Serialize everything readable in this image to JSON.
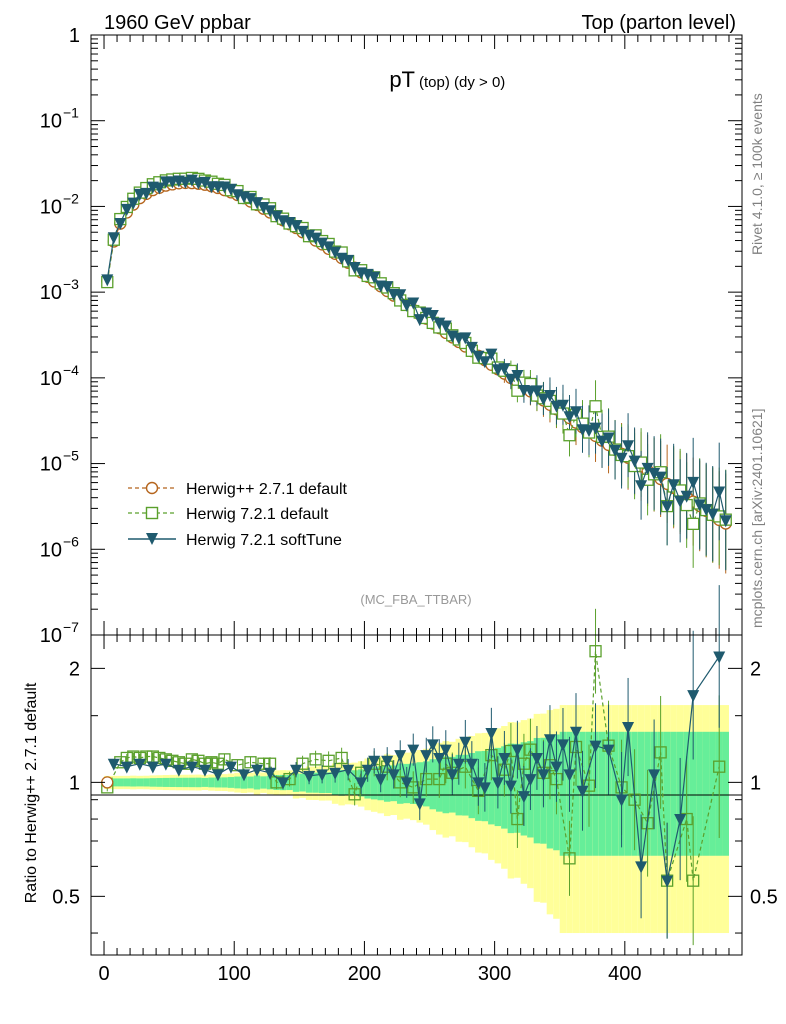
{
  "header": {
    "left": "1960 GeV ppbar",
    "right": "Top (parton level)"
  },
  "side_labels": {
    "rivet": "Rivet 4.1.0, ≥ 100k events",
    "mcplots": "mcplots.cern.ch [arXiv:2401.10621]"
  },
  "colors": {
    "herwigpp": "#b5651d",
    "herwig721": "#5aa02c",
    "softtune": "#1f5a6e",
    "band_yellow": "#ffff99",
    "band_green": "#66ee99"
  },
  "chart_data": [
    {
      "type": "line",
      "title_main": "pT",
      "title_sub": "(top) (dy > 0)",
      "watermark": "(MC_FBA_TTBAR)",
      "yscale": "log",
      "ylim": [
        1e-07,
        1
      ],
      "xlim": [
        -10,
        490
      ],
      "y_ticks": [
        {
          "v": 1,
          "base": "1",
          "exp": ""
        },
        {
          "v": 0.1,
          "base": "10",
          "exp": "−1"
        },
        {
          "v": 0.01,
          "base": "10",
          "exp": "−2"
        },
        {
          "v": 0.001,
          "base": "10",
          "exp": "−3"
        },
        {
          "v": 0.0001,
          "base": "10",
          "exp": "−4"
        },
        {
          "v": 1e-05,
          "base": "10",
          "exp": "−5"
        },
        {
          "v": 1e-06,
          "base": "10",
          "exp": "−6"
        },
        {
          "v": 1e-07,
          "base": "10",
          "exp": "−7"
        }
      ],
      "legend_position": "bottom-left",
      "series": [
        {
          "name": "Herwig++ 2.7.1 default",
          "marker": "circle-open",
          "x": [
            2.5,
            7.5,
            12.5,
            17.5,
            22.5,
            27.5,
            32.5,
            37.5,
            42.5,
            47.5,
            52.5,
            57.5,
            62.5,
            67.5,
            72.5,
            77.5,
            82.5,
            87.5,
            92.5,
            97.5,
            102.5,
            107.5,
            112.5,
            117.5,
            122.5,
            127.5,
            132.5,
            137.5,
            142.5,
            147.5,
            152.5,
            157.5,
            162.5,
            167.5,
            172.5,
            177.5,
            182.5,
            187.5,
            192.5,
            197.5,
            202.5,
            207.5,
            212.5,
            217.5,
            222.5,
            227.5,
            232.5,
            237.5,
            242.5,
            247.5,
            252.5,
            257.5,
            262.5,
            267.5,
            272.5,
            277.5,
            282.5,
            287.5,
            292.5,
            297.5,
            302.5,
            307.5,
            312.5,
            317.5,
            322.5,
            327.5,
            332.5,
            337.5,
            342.5,
            347.5,
            352.5,
            357.5,
            362.5,
            367.5,
            372.5,
            377.5,
            382.5,
            387.5,
            392.5,
            397.5,
            402.5,
            407.5,
            412.5,
            417.5,
            422.5,
            427.5,
            432.5,
            437.5,
            442.5,
            447.5,
            452.5,
            457.5,
            462.5,
            467.5,
            472.5,
            477.5
          ],
          "y": [
            0.00135,
            0.0039,
            0.0063,
            0.0085,
            0.0105,
            0.0125,
            0.014,
            0.0155,
            0.0165,
            0.0175,
            0.0181,
            0.0186,
            0.0188,
            0.0187,
            0.0184,
            0.0179,
            0.0172,
            0.0164,
            0.0155,
            0.0146,
            0.0136,
            0.0125,
            0.0114,
            0.0104,
            0.0094,
            0.0085,
            0.0077,
            0.0069,
            0.0062,
            0.0056,
            0.005,
            0.0045,
            0.004,
            0.0036,
            0.0032,
            0.0028,
            0.0025,
            0.0022,
            0.00193,
            0.0017,
            0.00151,
            0.00133,
            0.00117,
            0.00103,
            0.00091,
            0.0008,
            0.00071,
            0.00062,
            0.00055,
            0.00049,
            0.00043,
            0.00038,
            0.000335,
            0.000296,
            0.000262,
            0.000232,
            0.000205,
            0.000181,
            0.000161,
            0.000142,
            0.000126,
            0.000112,
            9.95e-05,
            8.85e-05,
            7.85e-05,
            6.95e-05,
            6.15e-05,
            5.45e-05,
            4.85e-05,
            4.3e-05,
            3.85e-05,
            3.4e-05,
            3e-05,
            2.65e-05,
            2.35e-05,
            2.1e-05,
            1.85e-05,
            1.65e-05,
            1.45e-05,
            1.3e-05,
            1.17e-05,
            1.04e-05,
            9.3e-06,
            8.3e-06,
            7.4e-06,
            6.6e-06,
            5.8e-06,
            5.2e-06,
            4.6e-06,
            4.1e-06,
            3.6e-06,
            3.2e-06,
            2.8e-06,
            2.5e-06,
            2.2e-06,
            2e-06
          ]
        },
        {
          "name": "Herwig 7.2.1 default",
          "marker": "square-open"
        },
        {
          "name": "Herwig 7.2.1 softTune",
          "marker": "triangle-down-filled"
        }
      ]
    },
    {
      "type": "line",
      "ylabel": "Ratio to Herwig++ 2.7.1 default",
      "ylim": [
        0.35,
        2.45
      ],
      "y_ticks": [
        0.5,
        1,
        2
      ],
      "x_ticks": [
        0,
        100,
        200,
        300,
        400
      ],
      "reference": 1,
      "series_ratio": [
        {
          "name": "Herwig 7.2.1 default",
          "x": [
            2.5,
            12.5,
            17.5,
            22.5,
            27.5,
            32.5,
            37.5,
            42.5,
            47.5,
            52.5,
            57.5,
            62.5,
            67.5,
            72.5,
            77.5,
            82.5,
            87.5,
            92.5,
            102.5,
            112.5,
            122.5,
            127.5,
            132.5,
            142.5,
            152.5,
            162.5,
            172.5,
            182.5,
            192.5,
            197.5,
            207.5,
            217.5,
            227.5,
            237.5,
            247.5,
            257.5,
            262.5,
            267.5,
            277.5,
            287.5,
            297.5,
            307.5,
            312.5,
            317.5,
            322.5,
            327.5,
            337.5,
            342.5,
            347.5,
            357.5,
            362.5,
            372.5,
            377.5,
            387.5,
            397.5,
            407.5,
            417.5,
            427.5,
            432.5,
            447.5,
            452.5,
            472.5
          ],
          "y": [
            0.97,
            1.13,
            1.16,
            1.17,
            1.16,
            1.17,
            1.17,
            1.16,
            1.15,
            1.14,
            1.13,
            1.12,
            1.15,
            1.14,
            1.12,
            1.13,
            1.12,
            1.15,
            1.11,
            1.13,
            1.12,
            1.12,
            1.0,
            1.02,
            1.12,
            1.15,
            1.14,
            1.16,
            0.93,
            1.06,
            1.12,
            1.1,
            1.0,
            0.97,
            1.02,
            1.02,
            1.12,
            1.06,
            1.1,
            0.95,
            1.18,
            1.08,
            1.21,
            0.8,
            1.12,
            1.22,
            1.06,
            1.11,
            1.02,
            0.63,
            1.24,
            0.98,
            2.22,
            1.25,
            0.97,
            0.9,
            0.78,
            1.2,
            0.55,
            0.8,
            0.55,
            1.1
          ]
        },
        {
          "name": "Herwig 7.2.1 softTune",
          "x": [
            7.5,
            17.5,
            27.5,
            37.5,
            47.5,
            57.5,
            67.5,
            77.5,
            87.5,
            97.5,
            107.5,
            117.5,
            127.5,
            137.5,
            147.5,
            157.5,
            167.5,
            177.5,
            187.5,
            197.5,
            202.5,
            207.5,
            212.5,
            217.5,
            222.5,
            227.5,
            232.5,
            237.5,
            242.5,
            247.5,
            252.5,
            257.5,
            262.5,
            267.5,
            272.5,
            277.5,
            282.5,
            287.5,
            292.5,
            297.5,
            302.5,
            307.5,
            312.5,
            317.5,
            322.5,
            327.5,
            332.5,
            337.5,
            342.5,
            347.5,
            352.5,
            357.5,
            362.5,
            367.5,
            377.5,
            387.5,
            397.5,
            402.5,
            412.5,
            422.5,
            432.5,
            442.5,
            452.5,
            472.5
          ],
          "y": [
            1.12,
            1.1,
            1.12,
            1.1,
            1.12,
            1.08,
            1.1,
            1.08,
            1.05,
            1.1,
            1.05,
            1.08,
            1.06,
            1.0,
            1.08,
            1.04,
            1.05,
            1.06,
            1.08,
            1.0,
            1.08,
            1.14,
            1.02,
            1.14,
            1.05,
            1.18,
            1.0,
            1.22,
            0.88,
            1.18,
            1.26,
            1.16,
            1.22,
            1.05,
            1.12,
            1.28,
            1.12,
            1.0,
            0.97,
            1.35,
            1.0,
            1.16,
            0.98,
            1.22,
            0.92,
            1.02,
            1.16,
            1.05,
            1.3,
            1.1,
            1.26,
            1.05,
            1.36,
            0.95,
            1.25,
            1.22,
            0.9,
            1.4,
            0.6,
            1.05,
            0.55,
            0.8,
            1.7,
            2.15
          ]
        }
      ]
    }
  ],
  "x_tick_labels": [
    "0",
    "100",
    "200",
    "300",
    "400"
  ],
  "ratio_tick_labels": [
    "0.5",
    "1",
    "2"
  ]
}
